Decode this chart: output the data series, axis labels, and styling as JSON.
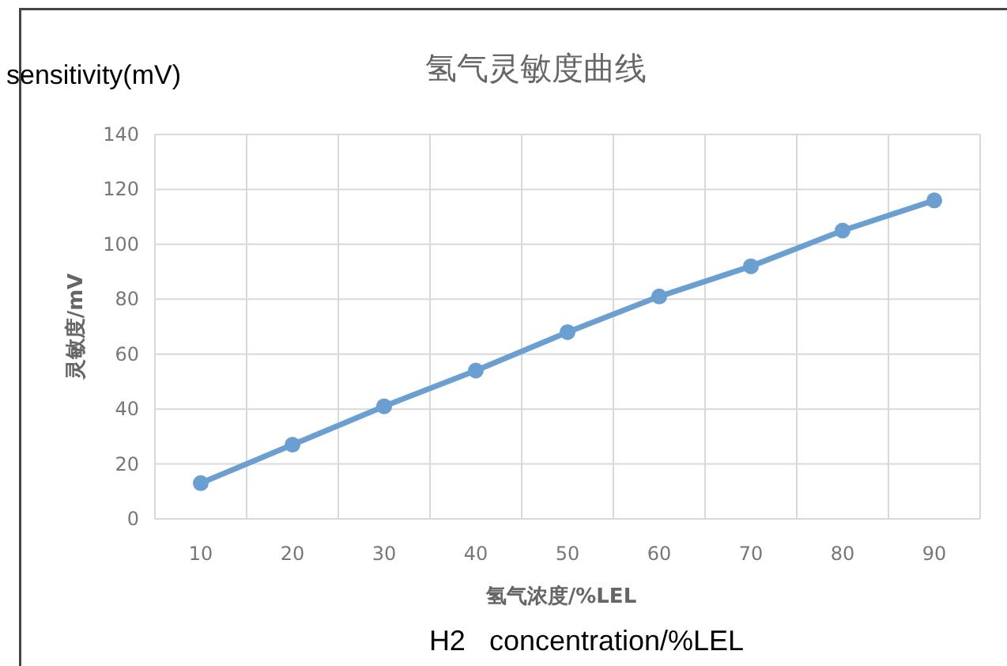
{
  "chart_data": {
    "type": "line",
    "title": "氢气灵敏度曲线",
    "xlabel": "氢气浓度/%LEL",
    "ylabel": "灵敏度/mV",
    "annotations": [
      "sensitivity(mV)",
      "H2   concentration/%LEL"
    ],
    "categories": [
      "10",
      "20",
      "30",
      "40",
      "50",
      "60",
      "70",
      "80",
      "90"
    ],
    "series": [
      {
        "color": "#6b9fd1",
        "values": [
          13,
          27,
          41,
          54,
          68,
          81,
          92,
          105,
          116
        ]
      }
    ],
    "ylim": [
      0,
      140
    ],
    "yticks": [
      0,
      20,
      40,
      60,
      80,
      100,
      120,
      140
    ],
    "grid": true,
    "marker": "circle",
    "line_style": "solid"
  }
}
